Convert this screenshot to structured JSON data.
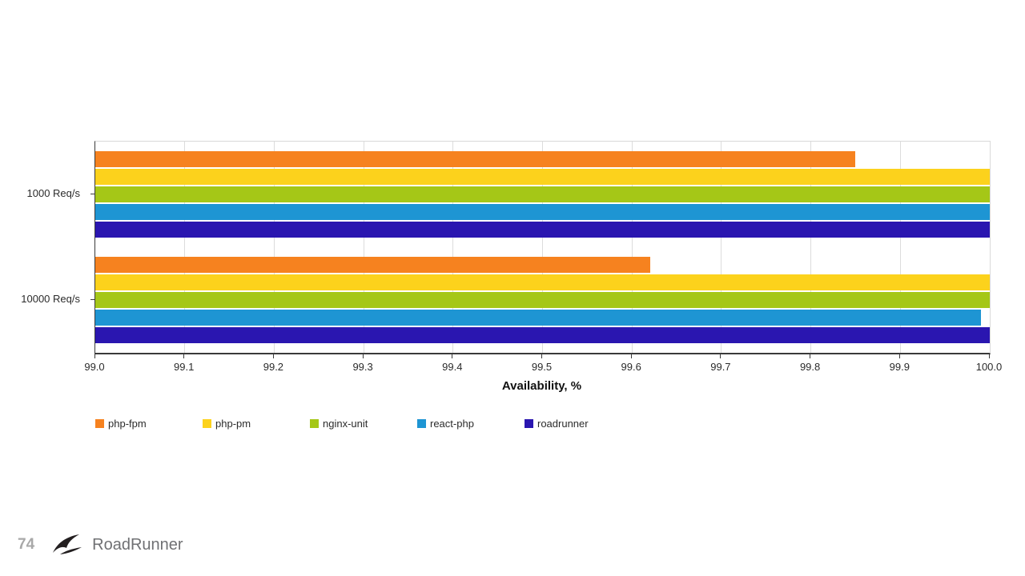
{
  "footer": {
    "page_number": "74",
    "brand": "RoadRunner"
  },
  "chart_data": {
    "type": "bar",
    "orientation": "horizontal",
    "title": "",
    "xlabel": "Availability, %",
    "ylabel": "",
    "xlim": [
      99.0,
      100.0
    ],
    "xtick_labels": [
      "99.0",
      "99.1",
      "99.2",
      "99.3",
      "99.4",
      "99.5",
      "99.6",
      "99.7",
      "99.8",
      "99.9",
      "100.0"
    ],
    "categories": [
      "1000 Req/s",
      "10000 Req/s"
    ],
    "grid": true,
    "legend_position": "bottom",
    "series": [
      {
        "name": "php-fpm",
        "color": "#f6821f",
        "values": [
          99.85,
          99.62
        ]
      },
      {
        "name": "php-pm",
        "color": "#fcd21c",
        "values": [
          100.0,
          100.0
        ]
      },
      {
        "name": "nginx-unit",
        "color": "#a5c717",
        "values": [
          100.0,
          100.0
        ]
      },
      {
        "name": "react-php",
        "color": "#1e95d3",
        "values": [
          100.0,
          99.99
        ]
      },
      {
        "name": "roadrunner",
        "color": "#2a16b0",
        "values": [
          100.0,
          100.0
        ]
      }
    ]
  }
}
